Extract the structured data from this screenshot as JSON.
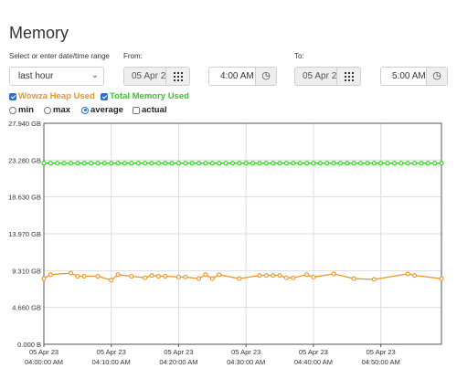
{
  "page": {
    "title": "Memory"
  },
  "range": {
    "label": "Select or enter date/time range",
    "selected": "last hour"
  },
  "from": {
    "label": "From:",
    "date": "05 Apr 2",
    "time": "4:00 AM"
  },
  "to": {
    "label": "To:",
    "date": "05 Apr 2",
    "time": "5:00 AM"
  },
  "series_toggles": [
    {
      "label": "Wowza Heap Used",
      "checked": true,
      "color": "#f0931e"
    },
    {
      "label": "Total Memory Used",
      "checked": true,
      "color": "#33cc22"
    }
  ],
  "mode_options": [
    {
      "label": "min",
      "selected": false
    },
    {
      "label": "max",
      "selected": false
    },
    {
      "label": "average",
      "selected": true
    },
    {
      "label": "actual",
      "selected": false
    }
  ],
  "icons": {
    "calendar": "calendar-grid-icon",
    "clock": "clock-icon",
    "dropdown": "chevron-down-icon"
  },
  "chart_data": {
    "type": "line",
    "y_tick_labels": [
      "27.940 GB",
      "23.280 GB",
      "18.630 GB",
      "13.970 GB",
      "9.310 GB",
      "4.660 GB",
      "0.000 B"
    ],
    "ylim": [
      0,
      27.94
    ],
    "x_tick_dates": [
      "05 Apr 23",
      "05 Apr 23",
      "05 Apr 23",
      "05 Apr 23",
      "05 Apr 23",
      "05 Apr 23"
    ],
    "x_tick_times": [
      "04:00:00 AM",
      "04:10:00 AM",
      "04:20:00 AM",
      "04:30:00 AM",
      "04:40:00 AM",
      "04:50:00 AM"
    ],
    "x_tick_minutes": [
      0,
      10,
      20,
      30,
      40,
      50
    ],
    "xlim_minutes": [
      0,
      59
    ],
    "grid": true,
    "series": [
      {
        "name": "Total Memory Used",
        "color": "#33cc22",
        "x": [
          0,
          1,
          2,
          3,
          4,
          5,
          6,
          7,
          8,
          9,
          10,
          11,
          12,
          13,
          14,
          15,
          16,
          17,
          18,
          19,
          20,
          21,
          22,
          23,
          24,
          25,
          26,
          27,
          28,
          29,
          30,
          31,
          32,
          33,
          34,
          35,
          36,
          37,
          38,
          39,
          40,
          41,
          42,
          43,
          44,
          45,
          46,
          47,
          48,
          49,
          50,
          51,
          52,
          53,
          54,
          55,
          56,
          57,
          58,
          59
        ],
        "y": [
          22.9,
          22.9,
          22.9,
          22.9,
          22.9,
          22.9,
          22.9,
          22.9,
          22.9,
          22.9,
          22.9,
          22.9,
          22.9,
          22.9,
          22.9,
          22.9,
          22.9,
          22.9,
          22.9,
          22.9,
          22.9,
          22.9,
          22.9,
          22.9,
          22.9,
          22.9,
          22.9,
          22.9,
          22.9,
          22.9,
          22.9,
          22.9,
          22.9,
          22.9,
          22.9,
          22.9,
          22.9,
          22.9,
          22.9,
          22.9,
          22.9,
          22.9,
          22.9,
          22.9,
          22.9,
          22.9,
          22.9,
          22.9,
          22.9,
          22.9,
          22.9,
          22.9,
          22.9,
          22.9,
          22.9,
          22.9,
          22.9,
          22.9,
          22.9,
          22.9
        ]
      },
      {
        "name": "Wowza Heap Used",
        "color": "#f0931e",
        "x": [
          0,
          1,
          4,
          5,
          6,
          8,
          10,
          11,
          13,
          15,
          16,
          17,
          18,
          20,
          21,
          23,
          24,
          25,
          26,
          29,
          32,
          33,
          34,
          35,
          36,
          37,
          39,
          40,
          43,
          46,
          49,
          54,
          55,
          59
        ],
        "y": [
          8.3,
          8.8,
          9.0,
          8.6,
          8.6,
          8.6,
          8.1,
          8.8,
          8.6,
          8.4,
          8.7,
          8.6,
          8.6,
          8.5,
          8.5,
          8.3,
          8.8,
          8.3,
          8.8,
          8.3,
          8.7,
          8.7,
          8.7,
          8.7,
          8.4,
          8.4,
          8.8,
          8.5,
          8.9,
          8.3,
          8.2,
          8.9,
          8.7,
          8.3
        ]
      }
    ]
  }
}
